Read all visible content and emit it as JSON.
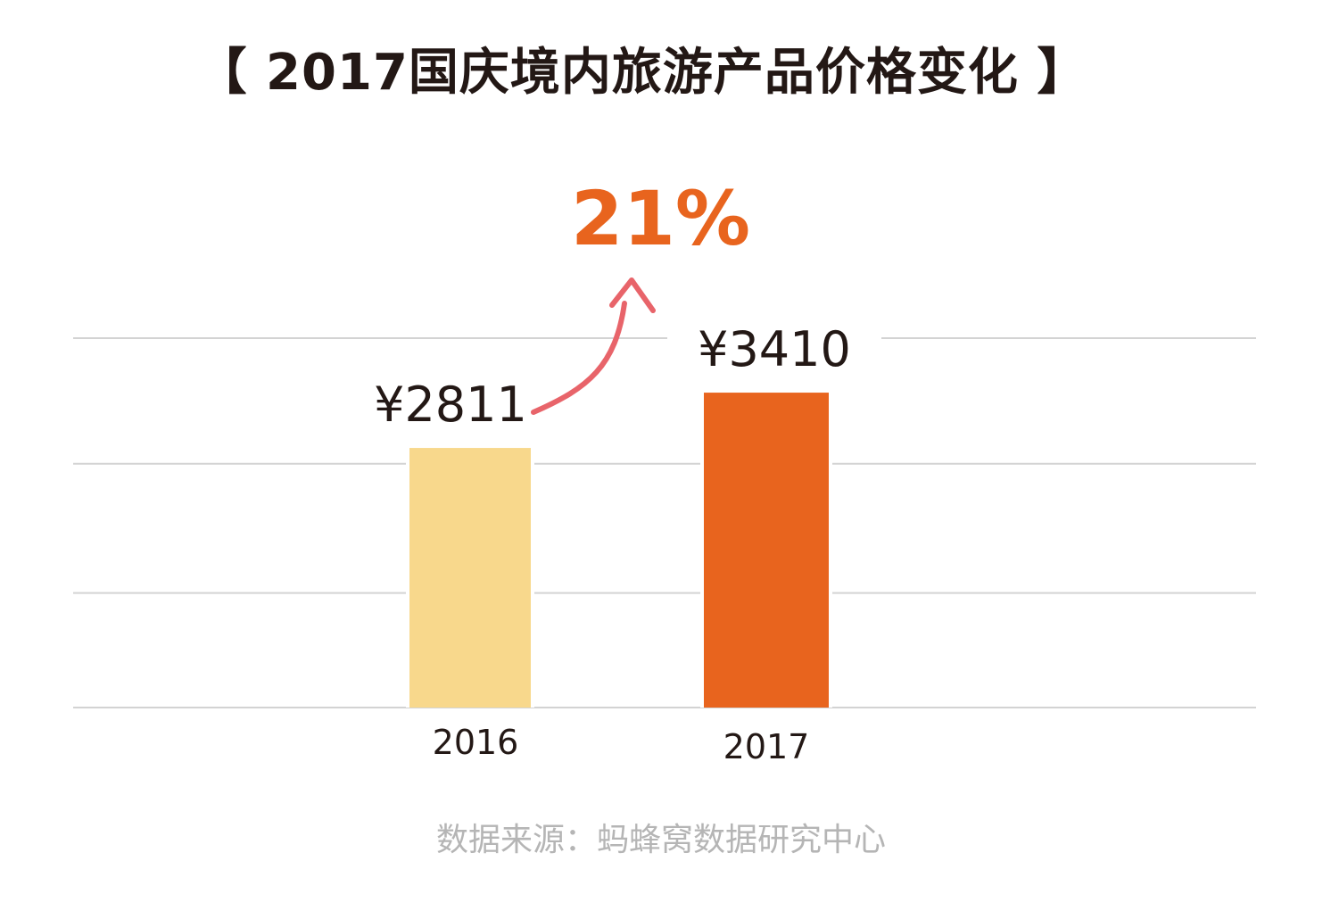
{
  "chart_data": {
    "type": "bar",
    "title": "【 2017国庆境内旅游产品价格变化 】",
    "categories": [
      "2016",
      "2017"
    ],
    "values": [
      2811,
      3410
    ],
    "value_labels": [
      "¥2811",
      "¥3410"
    ],
    "ylim": [
      0,
      4000
    ],
    "grid": true,
    "xlabel": "",
    "ylabel": "",
    "annotation": "21%",
    "source": "数据来源：蚂蜂窝数据研究中心",
    "colors": [
      "#f8d88c",
      "#e8641e"
    ],
    "annotation_color": "#e8641e",
    "arrow_color": "#e8646a"
  }
}
